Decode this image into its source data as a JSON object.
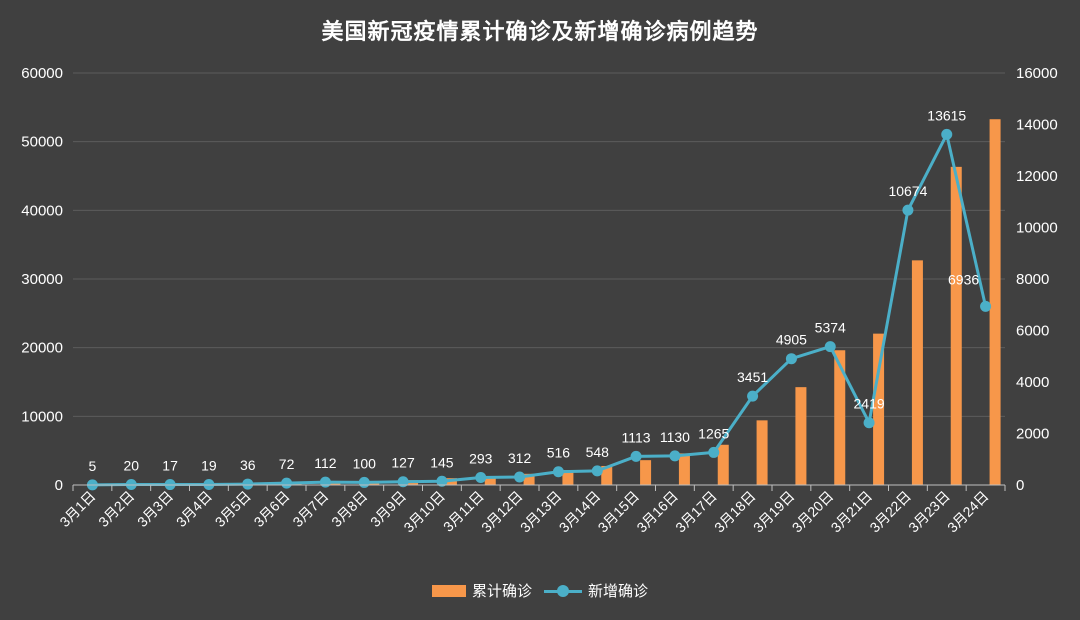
{
  "title": "美国新冠疫情累计确诊及新增确诊病例趋势",
  "colors": {
    "background": "#404040",
    "bar": "#F7974A",
    "line": "#4BAFC8",
    "grid": "#5C5C5C",
    "text": "#FFFFFF"
  },
  "legend": {
    "bar_label": "累计确诊",
    "line_label": "新增确诊"
  },
  "chart_data": {
    "type": "bar+line",
    "title": "美国新冠疫情累计确诊及新增确诊病例趋势",
    "categories": [
      "3月1日",
      "3月2日",
      "3月3日",
      "3月4日",
      "3月5日",
      "3月6日",
      "3月7日",
      "3月8日",
      "3月9日",
      "3月10日",
      "3月11日",
      "3月12日",
      "3月13日",
      "3月14日",
      "3月15日",
      "3月16日",
      "3月17日",
      "3月18日",
      "3月19日",
      "3月20日",
      "3月21日",
      "3月22日",
      "3月23日",
      "3月24日"
    ],
    "series": [
      {
        "name": "累计确诊",
        "type": "bar",
        "axis": "left",
        "values": [
          75,
          100,
          124,
          158,
          221,
          319,
          435,
          541,
          704,
          994,
          1301,
          1630,
          2183,
          2771,
          3617,
          4604,
          5860,
          9415,
          14250,
          19624,
          22043,
          32717,
          46332,
          53268
        ]
      },
      {
        "name": "新增确诊",
        "type": "line",
        "axis": "right",
        "values": [
          5,
          20,
          17,
          19,
          36,
          72,
          112,
          100,
          127,
          145,
          293,
          312,
          516,
          548,
          1113,
          1130,
          1265,
          3451,
          4905,
          5374,
          2419,
          10674,
          13615,
          6936
        ],
        "labels": [
          "5",
          "20",
          "17",
          "19",
          "36",
          "72",
          "112",
          "100",
          "127",
          "145",
          "293",
          "312",
          "516",
          "548",
          "1113",
          "1130",
          "1265",
          "3451",
          "4905",
          "5374",
          "2419",
          "10674",
          "13615",
          "6936"
        ]
      }
    ],
    "y_left": {
      "min": 0,
      "max": 60000,
      "ticks": [
        "0",
        "10000",
        "20000",
        "30000",
        "40000",
        "50000",
        "60000"
      ]
    },
    "y_right": {
      "min": 0,
      "max": 16000,
      "ticks": [
        "0",
        "2000",
        "4000",
        "6000",
        "8000",
        "10000",
        "12000",
        "14000",
        "16000"
      ]
    },
    "grid": true,
    "legend_position": "bottom"
  }
}
